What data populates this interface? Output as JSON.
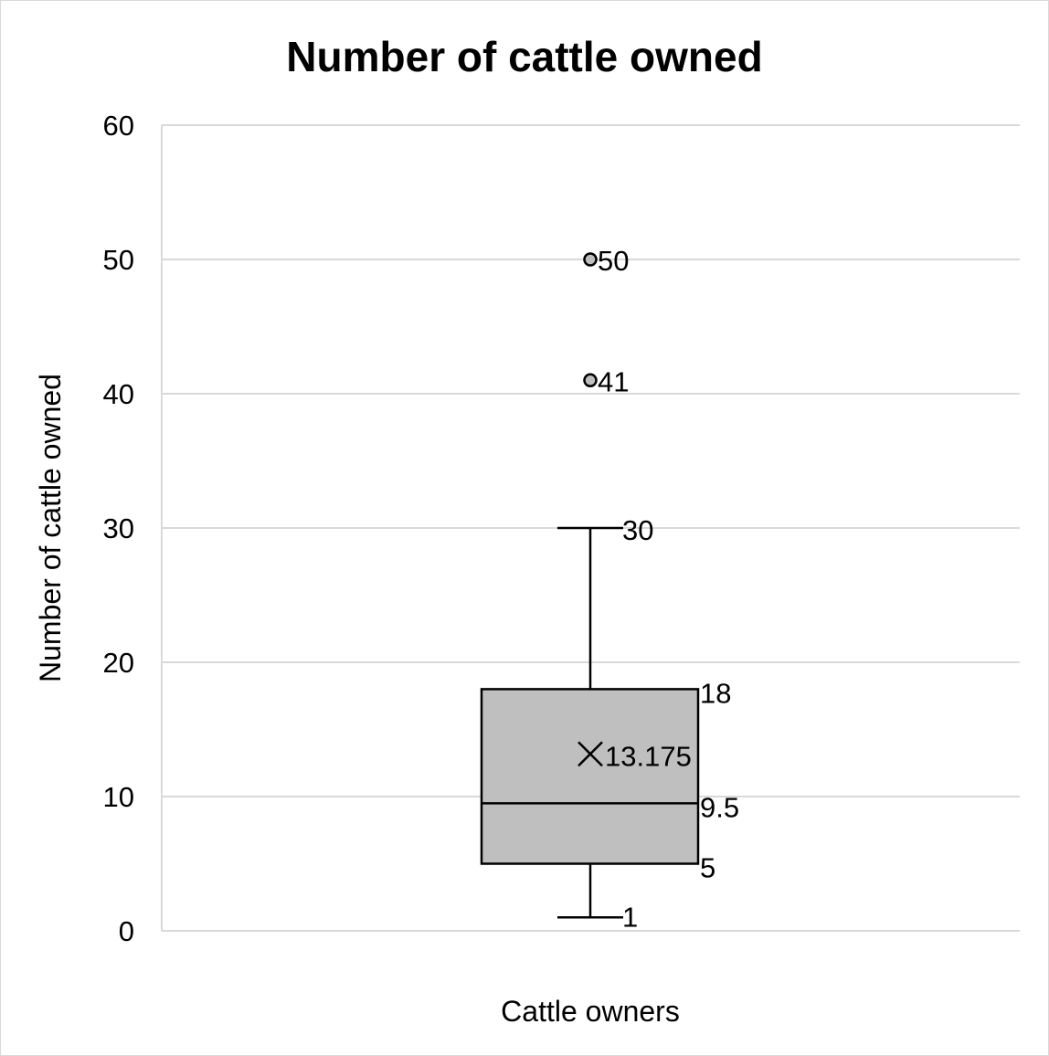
{
  "chart_data": {
    "type": "box",
    "title": "Number of cattle owned",
    "xlabel": "",
    "ylabel": "Number of cattle owned",
    "ylim": [
      0,
      60
    ],
    "yticks": [
      0,
      10,
      20,
      30,
      40,
      50,
      60
    ],
    "grid": true,
    "categories": [
      "Cattle owners"
    ],
    "series": [
      {
        "min": 1,
        "q1": 5,
        "median": 9.5,
        "mean": 13.175,
        "q3": 18,
        "max": 30,
        "outliers": [
          41,
          50
        ]
      }
    ],
    "labels": {
      "min": "1",
      "q1": "5",
      "median": "9.5",
      "mean": "13.175",
      "q3": "18",
      "max": "30",
      "outliers": [
        "41",
        "50"
      ]
    },
    "colors": {
      "box_fill": "#bfbfbf",
      "stroke": "#000000",
      "grid": "#d9d9d9"
    }
  }
}
